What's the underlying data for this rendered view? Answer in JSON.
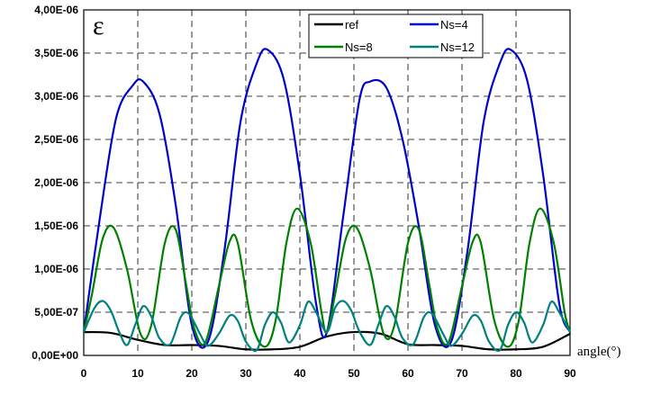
{
  "chart_data": {
    "type": "line",
    "ylabel": "ε",
    "xlabel": "angle(°)",
    "xlim": [
      0,
      90
    ],
    "ylim": [
      0,
      4e-06
    ],
    "x_ticks": [
      0,
      10,
      20,
      30,
      40,
      50,
      60,
      70,
      80,
      90
    ],
    "x_tick_labels": [
      "0",
      "10",
      "20",
      "30",
      "40",
      "50",
      "60",
      "70",
      "80",
      "90"
    ],
    "y_ticks": [
      0,
      5e-07,
      1e-06,
      1.5e-06,
      2e-06,
      2.5e-06,
      3e-06,
      3.5e-06,
      4e-06
    ],
    "y_tick_labels": [
      "0,00E+00",
      "5,00E-07",
      "1,00E-06",
      "1,50E-06",
      "2,00E-06",
      "2,50E-06",
      "3,00E-06",
      "3,50E-06",
      "4,00E-06"
    ],
    "grid": "dashed",
    "legend_position": "top-right",
    "series": [
      {
        "name": "ref",
        "color": "#000000",
        "x": [
          0,
          5,
          10,
          15,
          20,
          25,
          30,
          35,
          40,
          45,
          50,
          55,
          60,
          65,
          70,
          75,
          80,
          85,
          90
        ],
        "y": [
          2.7e-07,
          2.6e-07,
          1.8e-07,
          1.2e-07,
          1.2e-07,
          1.1e-07,
          7e-08,
          7e-08,
          1e-07,
          2.2e-07,
          2.7e-07,
          2.5e-07,
          1.3e-07,
          1.2e-07,
          1.1e-07,
          7e-08,
          7e-08,
          1e-07,
          2.5e-07
        ]
      },
      {
        "name": "Ns=4",
        "color": "#0000cc",
        "x": [
          0,
          3,
          6,
          9,
          11,
          14,
          17,
          20,
          23,
          26,
          29,
          32,
          34,
          37,
          40,
          43,
          45,
          48,
          51,
          53,
          56,
          59,
          62,
          65,
          68,
          71,
          74,
          77,
          79,
          82,
          85,
          88,
          90
        ],
        "y": [
          2.7e-07,
          1.6e-06,
          2.75e-06,
          3.12e-06,
          3.17e-06,
          2.8e-06,
          1.75e-06,
          3.5e-07,
          1.6e-07,
          1.2e-06,
          2.7e-06,
          3.38e-06,
          3.54e-06,
          3.2e-06,
          2.1e-06,
          6e-07,
          2.7e-07,
          1.6e-06,
          2.95e-06,
          3.17e-06,
          3.1e-06,
          2.5e-06,
          1.5e-06,
          3.5e-07,
          1.6e-07,
          1.2e-06,
          2.7e-06,
          3.38e-06,
          3.54e-06,
          3.2e-06,
          2.1e-06,
          6e-07,
          2.7e-07
        ]
      },
      {
        "name": "Ns=8",
        "color": "#008000",
        "x": [
          0,
          1.5,
          3.5,
          5.5,
          8,
          10.5,
          12.5,
          15,
          17,
          19,
          20.5,
          22.5,
          25,
          27,
          28.5,
          31,
          33.5,
          35.5,
          37.5,
          39.5,
          42,
          44,
          45,
          46.5,
          48.5,
          50.5,
          53,
          55.5,
          57.5,
          60,
          62,
          64,
          65.5,
          67.5,
          70,
          72,
          73.5,
          76,
          78.5,
          80.5,
          82.5,
          84.5,
          87,
          89,
          90
        ],
        "y": [
          2.7e-07,
          7e-07,
          1.35e-06,
          1.48e-06,
          1e-06,
          2.5e-07,
          3.5e-07,
          1.3e-06,
          1.46e-06,
          8e-07,
          3e-07,
          1.5e-07,
          8e-07,
          1.32e-06,
          1.3e-06,
          4e-07,
          1e-07,
          4e-07,
          1.3e-06,
          1.7e-06,
          1.3e-06,
          5e-07,
          2.7e-07,
          7e-07,
          1.35e-06,
          1.48e-06,
          1e-06,
          2.5e-07,
          3.5e-07,
          1.3e-06,
          1.46e-06,
          8e-07,
          3e-07,
          1.5e-07,
          8e-07,
          1.32e-06,
          1.3e-06,
          4e-07,
          1e-07,
          4e-07,
          1.3e-06,
          1.7e-06,
          1.3e-06,
          5e-07,
          2.7e-07
        ]
      },
      {
        "name": "Ns=12",
        "color": "#008080",
        "x": [
          0,
          2,
          3.5,
          5,
          6.5,
          8,
          9.5,
          11,
          12.5,
          14,
          16,
          18,
          19.5,
          21.5,
          23,
          25,
          27,
          28.5,
          30,
          32,
          33.5,
          35,
          36.5,
          38,
          40,
          41.5,
          43,
          45,
          46.5,
          48,
          49.5,
          51,
          53,
          54.5,
          56,
          57.5,
          59,
          61,
          63,
          64.5,
          66.5,
          68,
          70,
          72,
          73.5,
          75,
          77,
          78.5,
          80,
          81.5,
          83,
          85,
          86.5,
          88,
          90
        ],
        "y": [
          2.7e-07,
          5.5e-07,
          6.3e-07,
          5.2e-07,
          2.8e-07,
          1.2e-07,
          3.5e-07,
          5.7e-07,
          4.5e-07,
          2e-07,
          1.3e-07,
          4.5e-07,
          4.8e-07,
          2.5e-07,
          1.1e-07,
          2.5e-07,
          4.6e-07,
          4e-07,
          1.6e-07,
          6e-08,
          3.5e-07,
          5e-07,
          3.8e-07,
          1.5e-07,
          3.5e-07,
          6.2e-07,
          5e-07,
          2.7e-07,
          5.5e-07,
          6.3e-07,
          5.2e-07,
          2.8e-07,
          1.2e-07,
          3.5e-07,
          5.7e-07,
          4.5e-07,
          2e-07,
          1.3e-07,
          4.5e-07,
          4.8e-07,
          2.5e-07,
          1.1e-07,
          2.5e-07,
          4.6e-07,
          4e-07,
          1.6e-07,
          6e-08,
          3.5e-07,
          5e-07,
          3.8e-07,
          1.5e-07,
          3.5e-07,
          6.2e-07,
          5e-07,
          2.7e-07
        ]
      }
    ]
  }
}
